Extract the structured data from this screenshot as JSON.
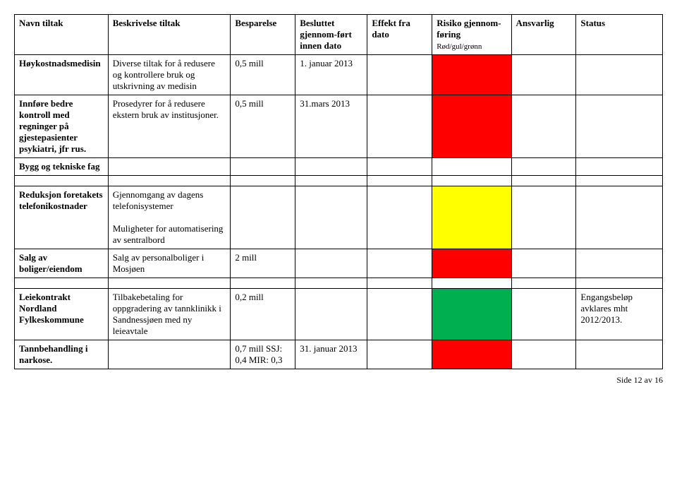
{
  "headers": {
    "c1": "Navn tiltak",
    "c2": "Beskrivelse tiltak",
    "c3": "Besparelse",
    "c4": "Besluttet gjennom-ført innen dato",
    "c5": "Effekt fra dato",
    "c6_a": "Risiko gjennom-føring",
    "c6_b": "Rød/gul/grønn",
    "c7": "Ansvarlig",
    "c8": "Status"
  },
  "rows": {
    "r1": {
      "name": "Høykostnadsmedisin",
      "desc": "Diverse tiltak for å redusere og kontrollere bruk og utskrivning av medisin",
      "save": "0,5 mill",
      "date": "1. januar 2013",
      "risk_color": "#ff0000"
    },
    "r2": {
      "name": "Innføre bedre kontroll med regninger på gjestepasienter psykiatri, jfr rus.",
      "desc": "Prosedyrer for å redusere ekstern bruk av institusjoner.",
      "save": "0,5 mill",
      "date": "31.mars 2013",
      "risk_color": "#ff0000"
    },
    "r3": {
      "name": "Bygg og tekniske fag"
    },
    "r4": {
      "name": "Reduksjon foretakets telefonikostnader",
      "desc_a": "Gjennomgang av dagens telefonisystemer",
      "desc_b": "Muligheter for automatisering av sentralbord",
      "risk_color": "#ffff00"
    },
    "r5": {
      "name": "Salg av boliger/eiendom",
      "desc": "Salg av personalboliger i Mosjøen",
      "save": "2 mill",
      "risk_color": "#ff0000"
    },
    "r6": {
      "name": "Leiekontrakt Nordland Fylkeskommune",
      "desc": "Tilbakebetaling for oppgradering av tannklinikk i Sandnessjøen med ny leieavtale",
      "save": "0,2 mill",
      "risk_color": "#00b050",
      "status": "Engangsbeløp avklares mht 2012/2013."
    },
    "r7": {
      "name": "Tannbehandling i narkose.",
      "save": "0,7 mill SSJ: 0,4 MIR: 0,3",
      "date": "31. januar 2013",
      "risk_color": "#ff0000"
    }
  },
  "footer": "Side 12 av 16"
}
